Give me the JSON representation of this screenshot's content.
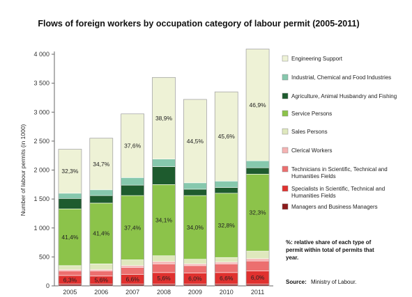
{
  "chart_data": {
    "type": "bar",
    "stacked": true,
    "title": "Flows of foreign workers by occupation category  of labour permit (2005-2011)",
    "ylabel": "Number of labour permits (in 1000)",
    "xlabel": "",
    "ylim": [
      0,
      4000
    ],
    "yticks": [
      0,
      500,
      1000,
      1500,
      2000,
      2500,
      3000,
      3500,
      4000
    ],
    "ytick_labels": [
      "0",
      "500",
      "1 000",
      "1 500",
      "2 000",
      "2 500",
      "3 000",
      "3 500",
      "4 000"
    ],
    "categories": [
      "2005",
      "2006",
      "2007",
      "2008",
      "2009",
      "2010",
      "2011"
    ],
    "series": [
      {
        "name": "Managers and Business Managers",
        "color": "#8b1a1a",
        "values": [
          30,
          30,
          30,
          30,
          30,
          30,
          30
        ]
      },
      {
        "name": "Specialists in Scientific, Technical and Humanities Fields",
        "color": "#e0312f",
        "values": [
          150,
          140,
          170,
          200,
          190,
          200,
          230
        ]
      },
      {
        "name": "Technicians in Scientific, Technical and Humanities Fields",
        "color": "#ec6f6f",
        "values": [
          80,
          90,
          120,
          150,
          130,
          150,
          170
        ]
      },
      {
        "name": "Clerical Workers",
        "color": "#f5b3b3",
        "values": [
          20,
          20,
          30,
          40,
          30,
          30,
          40
        ]
      },
      {
        "name": "Sales Persons",
        "color": "#dfe8bd",
        "values": [
          70,
          100,
          100,
          100,
          80,
          80,
          130
        ]
      },
      {
        "name": "Service Persons",
        "color": "#8cc34a",
        "values": [
          980,
          1050,
          1110,
          1230,
          1100,
          1110,
          1330
        ]
      },
      {
        "name": "Agriculture, Animal Husbandry and Fishing",
        "color": "#1e5b2e",
        "values": [
          180,
          130,
          180,
          310,
          110,
          100,
          110
        ]
      },
      {
        "name": "Industrial, Chemical and Food Industries",
        "color": "#86c8ad",
        "values": [
          90,
          100,
          130,
          130,
          110,
          110,
          120
        ]
      },
      {
        "name": "Engineering Support",
        "color": "#eef2d6",
        "values": [
          760,
          890,
          1100,
          1410,
          1440,
          1540,
          1930
        ]
      }
    ],
    "percent_labels": {
      "bottom": [
        "6,3%",
        "5,6%",
        "6,6%",
        "5,6%",
        "6,0%",
        "6,6%",
        "6,0%"
      ],
      "middle": [
        "41,4%",
        "41,4%",
        "37,4%",
        "34,1%",
        "34,0%",
        "32,8%",
        "32,3%"
      ],
      "top": [
        "32,3%",
        "34,7%",
        "37,6%",
        "38,9%",
        "44,5%",
        "45,6%",
        "46,9%"
      ]
    },
    "legend_order": [
      "Engineering Support",
      "Industrial, Chemical and Food Industries",
      "Agriculture, Animal Husbandry and Fishing",
      "Service Persons",
      "Sales Persons",
      "Clerical Workers",
      "Technicians in Scientific, Technical and Humanities Fields",
      "Specialists in Scientific, Technical and Humanities Fields",
      "Managers and Business Managers"
    ],
    "legend_placement": "right",
    "grid": false
  },
  "notes": {
    "share_note": "%: relative share of each type of permit  within total of permits that year.",
    "source_label": "Source:",
    "source_value": "Ministry of Labour."
  }
}
